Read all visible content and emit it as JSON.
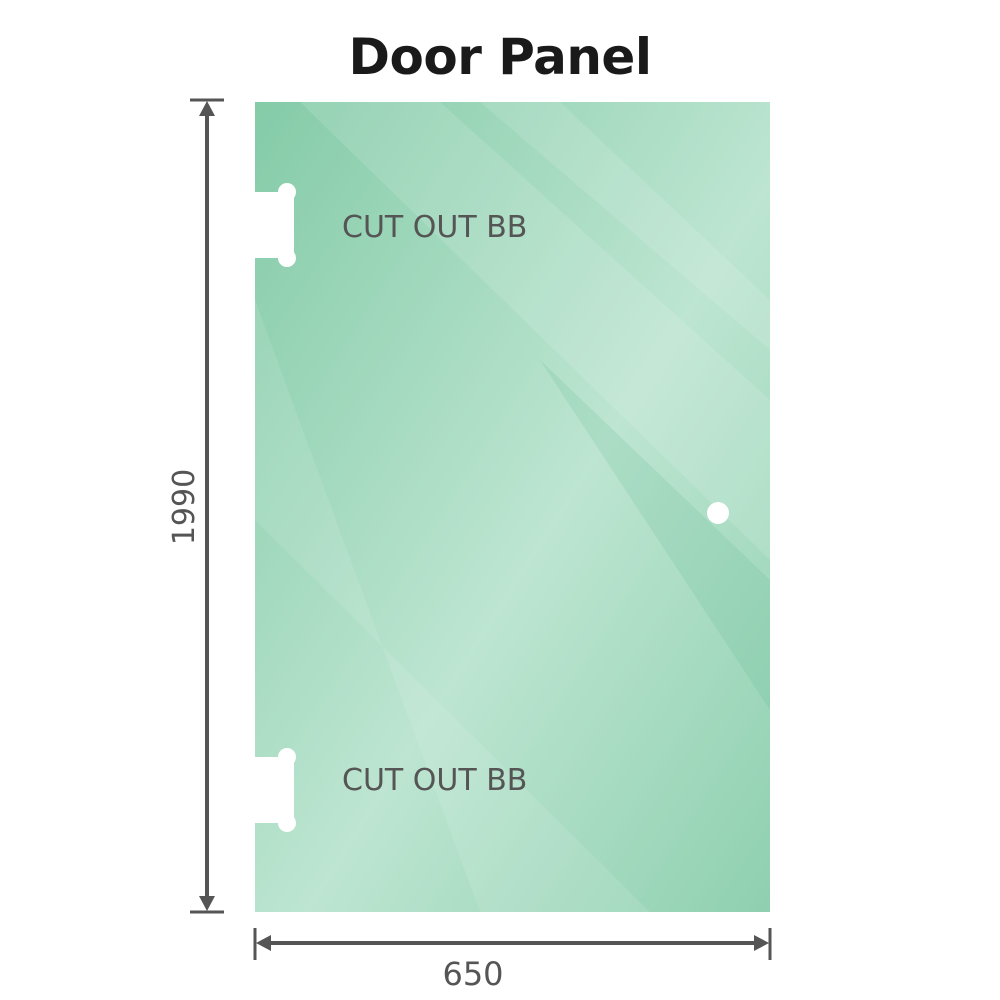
{
  "title": "Door Panel",
  "dimensions": {
    "height": "1990",
    "width": "650"
  },
  "cutouts": [
    {
      "label": "CUT OUT BB"
    },
    {
      "label": "CUT OUT BB"
    }
  ],
  "colors": {
    "glass": "#8fd0b0",
    "glass_light": "#bfe6d3",
    "dimension_line": "#555555",
    "text": "#555555"
  }
}
